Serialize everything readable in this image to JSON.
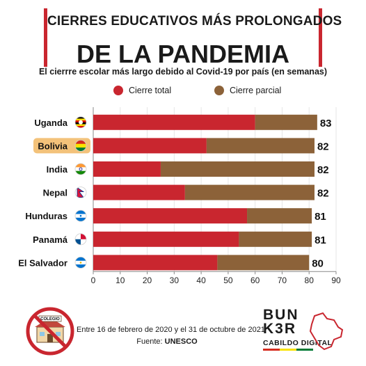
{
  "header": {
    "title_line1": "CIERRES EDUCATIVOS MÁS PROLONGADOS",
    "title_line2": "DE LA PANDEMIA",
    "subtitle": "El cierrre escolar más largo debido al Covid-19 por país (en semanas)"
  },
  "legend": {
    "total_label": "Cierre total",
    "partial_label": "Cierre parcial"
  },
  "colors": {
    "total": "#c9262f",
    "partial": "#8c6239",
    "accent": "#c9262f",
    "highlight": "#f3c27a"
  },
  "chart_data": {
    "type": "bar",
    "orientation": "horizontal",
    "stacked": true,
    "title": "El cierrre escolar más largo debido al Covid-19 por país (en semanas)",
    "categories": [
      "Uganda",
      "Bolivia",
      "India",
      "Nepal",
      "Hunduras",
      "Panamá",
      "El Salvador"
    ],
    "flags": [
      "uganda-flag",
      "bolivia-flag",
      "india-flag",
      "nepal-flag",
      "honduras-flag",
      "panama-flag",
      "el-salvador-flag"
    ],
    "highlighted_category": "Bolivia",
    "series": [
      {
        "name": "Cierre total",
        "values": [
          60,
          42,
          25,
          34,
          57,
          54,
          46
        ]
      },
      {
        "name": "Cierre parcial",
        "values": [
          23,
          40,
          57,
          48,
          24,
          27,
          34
        ]
      }
    ],
    "totals": [
      83,
      82,
      82,
      82,
      81,
      81,
      80
    ],
    "xlim": [
      0,
      90
    ],
    "xticks": [
      0,
      10,
      20,
      30,
      40,
      50,
      60,
      70,
      80,
      90
    ],
    "grid": true,
    "legend_position": "top"
  },
  "footer": {
    "date_range": "Entre 16 de febrero de 2020 y el 31 de octubre de 2021",
    "source_prefix": "Fuente: ",
    "source_name": "UNESCO",
    "school_sign": "COLEGIO"
  },
  "brand": {
    "line1": "BUN",
    "line2": "K3R",
    "line3": "CABILDO DIGITAL"
  }
}
